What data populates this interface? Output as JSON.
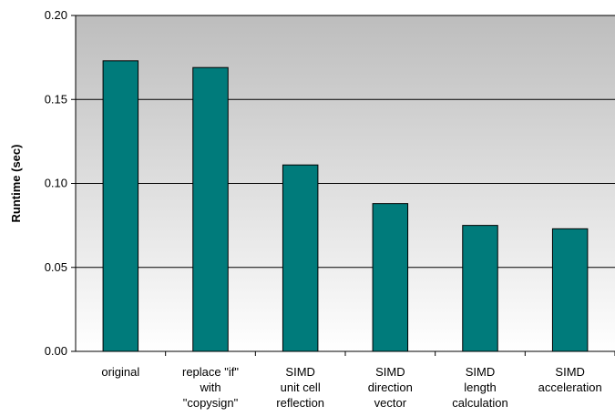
{
  "chart_data": {
    "type": "bar",
    "title": "",
    "xlabel": "",
    "ylabel": "Runtime (sec)",
    "ylim": [
      0,
      0.2
    ],
    "yticks": [
      "0.00",
      "0.05",
      "0.10",
      "0.15",
      "0.20"
    ],
    "categories": [
      [
        "original"
      ],
      [
        "replace \"if\"",
        "with",
        "\"copysign\""
      ],
      [
        "SIMD",
        "unit cell",
        "reflection"
      ],
      [
        "SIMD",
        "direction",
        "vector"
      ],
      [
        "SIMD",
        "length",
        "calculation"
      ],
      [
        "SIMD",
        "acceleration"
      ]
    ],
    "values": [
      0.173,
      0.169,
      0.111,
      0.088,
      0.075,
      0.073
    ],
    "grid": true,
    "bar_color": "#007B7B",
    "plot_background": "gradient gray to white"
  }
}
